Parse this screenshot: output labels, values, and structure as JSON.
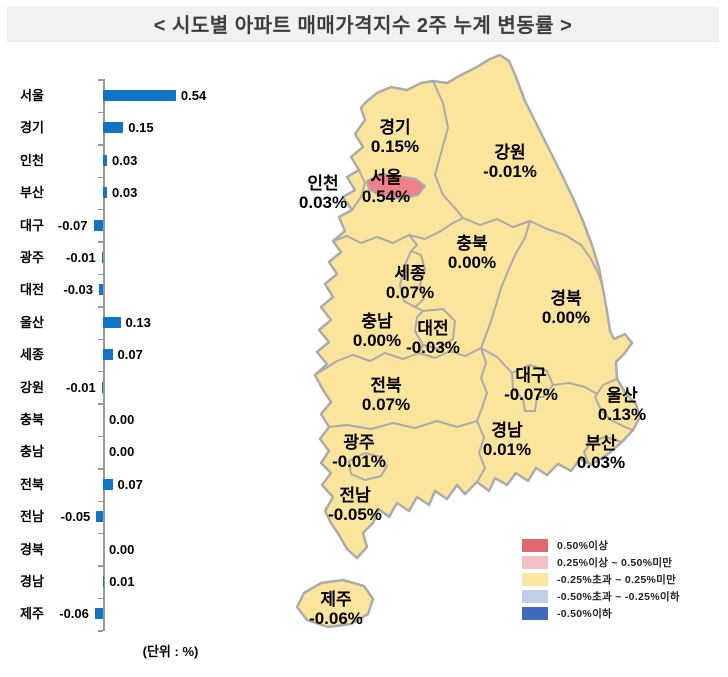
{
  "title": "< 시도별 아파트 매매가격지수 2주 누계 변동률 >",
  "unit_note": "(단위 : %)",
  "colors": {
    "bar": "#1274C6",
    "map_fill": "#FBE59D",
    "map_stroke": "#ABABAB",
    "seoul_highlight": "#EF8189",
    "title_band": "#F1F1F1"
  },
  "chart_data": {
    "type": "bar",
    "orientation": "horizontal",
    "title": "시도별 아파트 매매가격지수 2주 누계 변동률",
    "unit": "%",
    "categories": [
      "서울",
      "경기",
      "인천",
      "부산",
      "대구",
      "광주",
      "대전",
      "울산",
      "세종",
      "강원",
      "충북",
      "충남",
      "전북",
      "전남",
      "경북",
      "경남",
      "제주"
    ],
    "values": [
      0.54,
      0.15,
      0.03,
      0.03,
      -0.07,
      -0.01,
      -0.03,
      0.13,
      0.07,
      -0.01,
      0.0,
      0.0,
      0.07,
      -0.05,
      0.0,
      0.01,
      -0.06
    ],
    "value_labels": [
      "0.54",
      "0.15",
      "0.03",
      "0.03",
      "-0.07",
      "-0.01",
      "-0.03",
      "0.13",
      "0.07",
      "-0.01",
      "0.00",
      "0.00",
      "0.07",
      "-0.05",
      "0.00",
      "0.01",
      "-0.06"
    ],
    "grid": false,
    "legend_position": "none"
  },
  "map": {
    "highlighted_region": "서울",
    "regions": [
      {
        "name": "경기",
        "value": "0.15%"
      },
      {
        "name": "강원",
        "value": "-0.01%"
      },
      {
        "name": "인천",
        "value": "0.03%"
      },
      {
        "name": "서울",
        "value": "0.54%"
      },
      {
        "name": "충북",
        "value": "0.00%"
      },
      {
        "name": "세종",
        "value": "0.07%"
      },
      {
        "name": "경북",
        "value": "0.00%"
      },
      {
        "name": "충남",
        "value": "0.00%"
      },
      {
        "name": "대전",
        "value": "-0.03%"
      },
      {
        "name": "전북",
        "value": "0.07%"
      },
      {
        "name": "대구",
        "value": "-0.07%"
      },
      {
        "name": "울산",
        "value": "0.13%"
      },
      {
        "name": "광주",
        "value": "-0.01%"
      },
      {
        "name": "경남",
        "value": "0.01%"
      },
      {
        "name": "부산",
        "value": "0.03%"
      },
      {
        "name": "전남",
        "value": "-0.05%"
      },
      {
        "name": "제주",
        "value": "-0.06%"
      }
    ]
  },
  "legend": {
    "items": [
      {
        "color": "#DF696E",
        "label": "0.50%이상"
      },
      {
        "color": "#F2BFC2",
        "label": "0.25%이상 ~ 0.50%미만"
      },
      {
        "color": "#FAE69E",
        "label": "-0.25%초과 ~ 0.25%미만"
      },
      {
        "color": "#BFCFE8",
        "label": "-0.50%초과 ~ -0.25%이하"
      },
      {
        "color": "#3E6BBE",
        "label": "-0.50%이하"
      }
    ]
  }
}
